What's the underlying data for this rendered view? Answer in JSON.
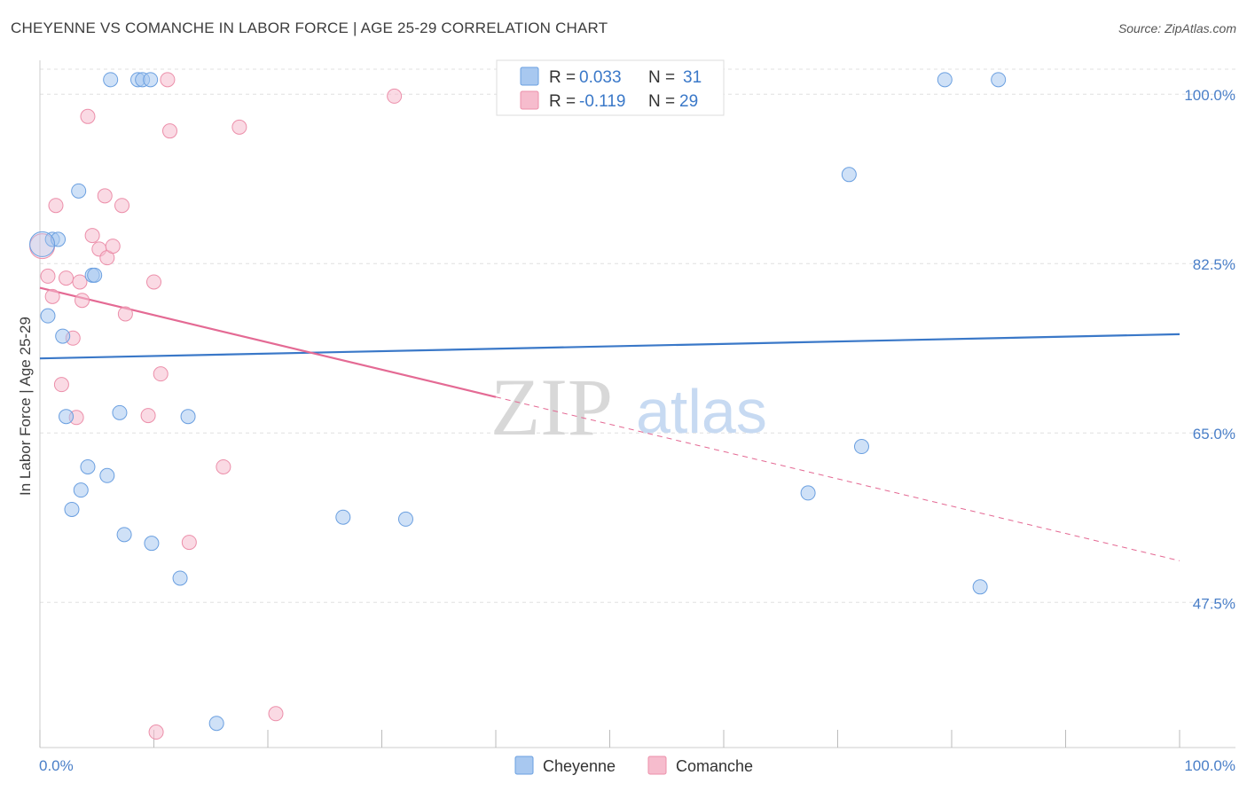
{
  "title": "CHEYENNE VS COMANCHE IN LABOR FORCE | AGE 25-29 CORRELATION CHART",
  "source": "Source: ZipAtlas.com",
  "watermark": {
    "zip": "ZIP",
    "atlas": "atlas"
  },
  "legend_top": {
    "cheyenne": {
      "r_label": "R =",
      "r_value": "0.033",
      "n_label": "N =",
      "n_value": "31"
    },
    "comanche": {
      "r_label": "R =",
      "r_value": "-0.119",
      "n_label": "N =",
      "n_value": "29"
    }
  },
  "colors": {
    "cheyenne_fill": "#a8c8f0",
    "cheyenne_stroke": "#6a9fe0",
    "cheyenne_line": "#3a78c8",
    "comanche_fill": "#f6bccd",
    "comanche_stroke": "#ec8faa",
    "comanche_line": "#e46a94",
    "value_blue": "#3a78c8",
    "grid": "#e0e0e0"
  },
  "chart_data": {
    "type": "scatter",
    "title": "CHEYENNE VS COMANCHE IN LABOR FORCE | AGE 25-29 CORRELATION CHART",
    "xlabel": "",
    "ylabel": "In Labor Force | Age 25-29",
    "xlim": [
      0,
      100
    ],
    "ylim": [
      32.5,
      103.5
    ],
    "x_tick_labels": [
      "0.0%",
      "100.0%"
    ],
    "y_ticks": [
      47.5,
      65.0,
      82.5,
      100.0
    ],
    "y_tick_labels": [
      "47.5%",
      "65.0%",
      "82.5%",
      "100.0%"
    ],
    "grid": true,
    "legend": [
      "Cheyenne",
      "Comanche"
    ],
    "series": [
      {
        "name": "Cheyenne",
        "points": [
          [
            6.2,
            101.5
          ],
          [
            8.6,
            101.5
          ],
          [
            9.0,
            101.5
          ],
          [
            9.7,
            101.5
          ],
          [
            79.4,
            101.5
          ],
          [
            84.1,
            101.5
          ],
          [
            3.4,
            90.0
          ],
          [
            71.0,
            91.7
          ],
          [
            1.1,
            85.0
          ],
          [
            1.6,
            85.0
          ],
          [
            4.6,
            81.3
          ],
          [
            4.8,
            81.3
          ],
          [
            0.7,
            77.1
          ],
          [
            2.0,
            75.0
          ],
          [
            2.3,
            66.7
          ],
          [
            7.0,
            67.1
          ],
          [
            13.0,
            66.7
          ],
          [
            4.2,
            61.5
          ],
          [
            5.9,
            60.6
          ],
          [
            72.1,
            63.6
          ],
          [
            3.6,
            59.1
          ],
          [
            67.4,
            58.8
          ],
          [
            2.8,
            57.1
          ],
          [
            26.6,
            56.3
          ],
          [
            32.1,
            56.1
          ],
          [
            7.4,
            54.5
          ],
          [
            9.8,
            53.6
          ],
          [
            12.3,
            50.0
          ],
          [
            82.5,
            49.1
          ],
          [
            15.5,
            35.0
          ],
          [
            0.2,
            84.5
          ]
        ],
        "trend": {
          "x": [
            0,
            100
          ],
          "y": [
            72.7,
            75.2
          ]
        }
      },
      {
        "name": "Comanche",
        "points": [
          [
            11.2,
            101.5
          ],
          [
            31.1,
            99.8
          ],
          [
            4.2,
            97.7
          ],
          [
            17.5,
            96.6
          ],
          [
            11.4,
            96.2
          ],
          [
            1.4,
            88.5
          ],
          [
            5.7,
            89.5
          ],
          [
            7.2,
            88.5
          ],
          [
            4.6,
            85.4
          ],
          [
            5.2,
            84.0
          ],
          [
            5.9,
            83.1
          ],
          [
            6.4,
            84.3
          ],
          [
            0.7,
            81.2
          ],
          [
            2.3,
            81.0
          ],
          [
            3.5,
            80.6
          ],
          [
            10.0,
            80.6
          ],
          [
            1.1,
            79.1
          ],
          [
            3.7,
            78.7
          ],
          [
            7.5,
            77.3
          ],
          [
            2.9,
            74.8
          ],
          [
            1.9,
            70.0
          ],
          [
            10.6,
            71.1
          ],
          [
            3.2,
            66.6
          ],
          [
            9.5,
            66.8
          ],
          [
            16.1,
            61.5
          ],
          [
            13.1,
            53.7
          ],
          [
            20.7,
            36.0
          ],
          [
            10.2,
            34.1
          ],
          [
            0.2,
            84.3
          ]
        ],
        "trend": {
          "x": [
            0,
            100
          ],
          "y": [
            80.0,
            51.8
          ],
          "solid_until_x": 40
        }
      }
    ]
  },
  "legend_bottom": {
    "cheyenne": "Cheyenne",
    "comanche": "Comanche"
  }
}
